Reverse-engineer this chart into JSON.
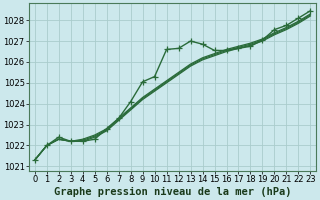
{
  "title": "Graphe pression niveau de la mer (hPa)",
  "bg_color": "#cce8ec",
  "grid_color": "#aacccc",
  "line_color": "#2a6b3a",
  "xlim": [
    -0.5,
    23.5
  ],
  "ylim": [
    1020.8,
    1028.8
  ],
  "yticks": [
    1021,
    1022,
    1023,
    1024,
    1025,
    1026,
    1027,
    1028
  ],
  "xticks": [
    0,
    1,
    2,
    3,
    4,
    5,
    6,
    7,
    8,
    9,
    10,
    11,
    12,
    13,
    14,
    15,
    16,
    17,
    18,
    19,
    20,
    21,
    22,
    23
  ],
  "lines": [
    {
      "x": [
        0,
        1,
        2,
        3,
        4,
        5,
        6,
        7,
        8,
        9,
        10,
        11,
        12,
        13,
        14,
        15,
        16,
        17,
        18,
        19,
        20,
        21,
        22,
        23
      ],
      "y": [
        1021.3,
        1022.0,
        1022.4,
        1022.2,
        1022.2,
        1022.3,
        1022.8,
        1023.3,
        1024.1,
        1025.05,
        1025.3,
        1026.6,
        1026.65,
        1027.0,
        1026.85,
        1026.55,
        1026.55,
        1026.65,
        1026.75,
        1027.05,
        1027.55,
        1027.75,
        1028.1,
        1028.45
      ],
      "marker": "+",
      "lw": 1.0,
      "ms": 4
    },
    {
      "x": [
        0,
        1,
        2,
        3,
        4,
        5,
        6,
        7,
        8,
        9,
        10,
        11,
        12,
        13,
        14,
        15,
        16,
        17,
        18,
        19,
        20,
        21,
        22,
        23
      ],
      "y": [
        1021.3,
        1022.0,
        1022.3,
        1022.2,
        1022.2,
        1022.4,
        1022.7,
        1023.2,
        1023.7,
        1024.2,
        1024.6,
        1025.0,
        1025.4,
        1025.8,
        1026.1,
        1026.3,
        1026.5,
        1026.65,
        1026.8,
        1027.0,
        1027.3,
        1027.55,
        1027.85,
        1028.2
      ],
      "marker": null,
      "lw": 0.9,
      "ms": 0
    },
    {
      "x": [
        0,
        1,
        2,
        3,
        4,
        5,
        6,
        7,
        8,
        9,
        10,
        11,
        12,
        13,
        14,
        15,
        16,
        17,
        18,
        19,
        20,
        21,
        22,
        23
      ],
      "y": [
        1021.3,
        1022.0,
        1022.3,
        1022.2,
        1022.25,
        1022.45,
        1022.75,
        1023.25,
        1023.75,
        1024.25,
        1024.65,
        1025.05,
        1025.45,
        1025.85,
        1026.15,
        1026.35,
        1026.55,
        1026.7,
        1026.85,
        1027.05,
        1027.35,
        1027.6,
        1027.9,
        1028.25
      ],
      "marker": null,
      "lw": 0.9,
      "ms": 0
    },
    {
      "x": [
        0,
        1,
        2,
        3,
        4,
        5,
        6,
        7,
        8,
        9,
        10,
        11,
        12,
        13,
        14,
        15,
        16,
        17,
        18,
        19,
        20,
        21,
        22,
        23
      ],
      "y": [
        1021.3,
        1022.0,
        1022.3,
        1022.2,
        1022.3,
        1022.5,
        1022.8,
        1023.3,
        1023.8,
        1024.3,
        1024.7,
        1025.1,
        1025.5,
        1025.9,
        1026.2,
        1026.4,
        1026.6,
        1026.75,
        1026.9,
        1027.1,
        1027.4,
        1027.65,
        1027.95,
        1028.3
      ],
      "marker": null,
      "lw": 0.9,
      "ms": 0
    }
  ],
  "title_fontsize": 7.5,
  "tick_fontsize": 6,
  "ylabel_fontsize": 6
}
